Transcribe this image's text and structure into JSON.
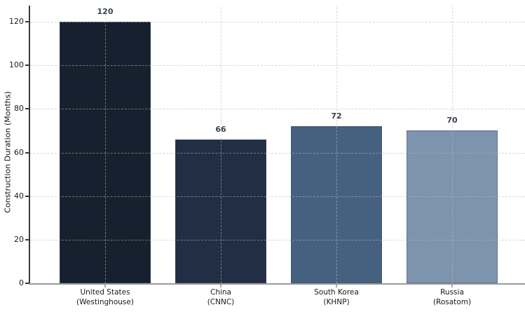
{
  "chart_data": {
    "type": "bar",
    "title": "",
    "xlabel": "",
    "ylabel": "Construction Duration (Months)",
    "categories": [
      "United States\n(Westinghouse)",
      "China\n(CNNC)",
      "South Korea\n(KHNP)",
      "Russia\n(Rosatom)"
    ],
    "values": [
      120,
      66,
      72,
      70
    ],
    "value_labels": [
      "120",
      "66",
      "72",
      "70"
    ],
    "bar_colors": [
      "#17202e",
      "#222e44",
      "#45617f",
      "#7e93ae"
    ],
    "yticks": [
      0,
      20,
      40,
      60,
      80,
      100,
      120
    ],
    "ylim": [
      0,
      127
    ],
    "grid": "dashed horizontal and vertical gridlines, drawn over bars",
    "legend": "none"
  }
}
